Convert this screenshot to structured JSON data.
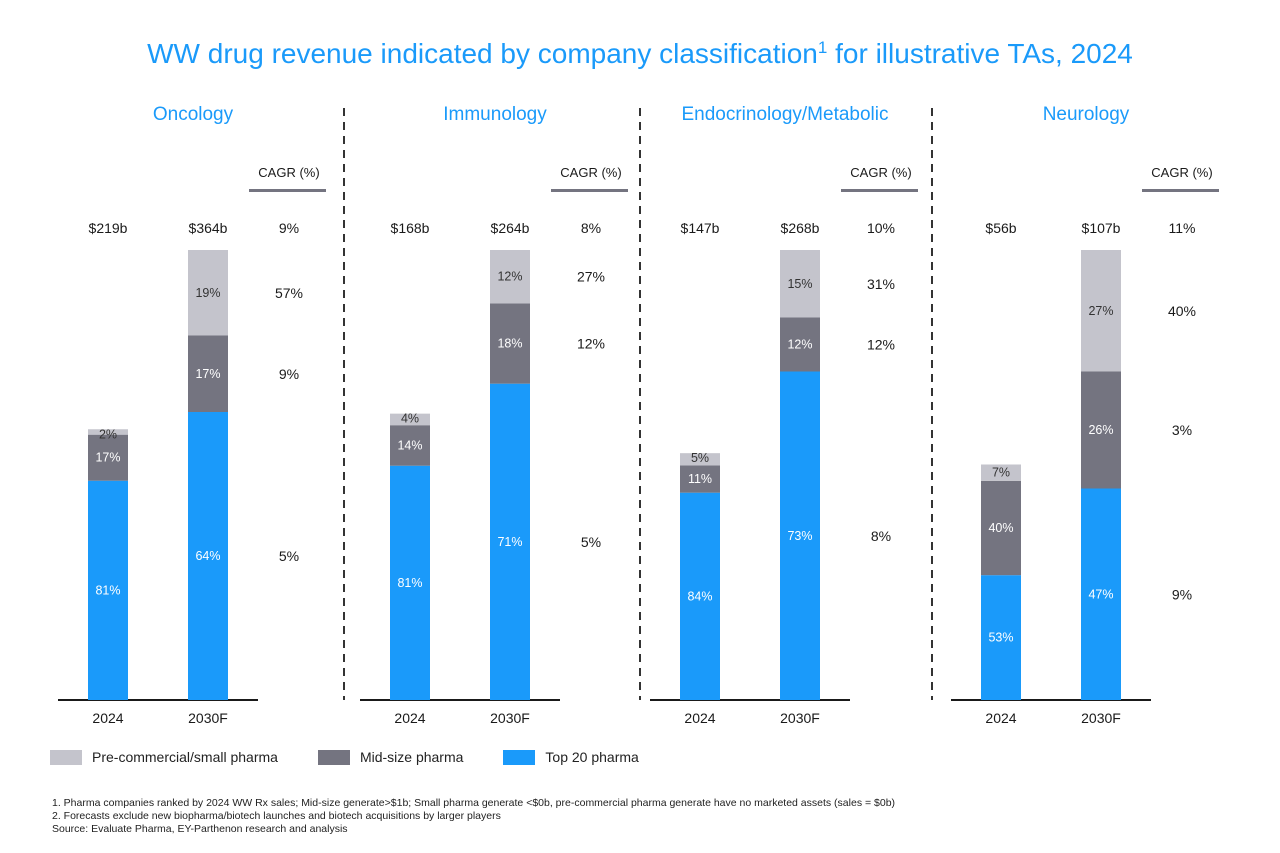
{
  "chart_data": {
    "type": "bar",
    "stacked": true,
    "title": "WW drug revenue indicated by company classification",
    "title_superscript": "1",
    "title_suffix": " for illustrative TAs, 2024",
    "cagr_header": "CAGR (%)",
    "categories": [
      "2024",
      "2030F"
    ],
    "series_names": [
      "Pre-commercial/small pharma",
      "Mid-size pharma",
      "Top 20 pharma"
    ],
    "colors": {
      "Pre-commercial/small pharma": "#c4c4cc",
      "Mid-size pharma": "#747480",
      "Top 20 pharma": "#1a9afa",
      "title": "#1a9afa",
      "axis": "#1a1a1a",
      "divider": "#333333",
      "cagr_rule": "#747480"
    },
    "panels": [
      {
        "name": "Oncology",
        "totals": [
          "$219b",
          "$364b"
        ],
        "total_values": [
          219,
          364
        ],
        "shares": {
          "Pre-commercial/small pharma": [
            2,
            19
          ],
          "Mid-size pharma": [
            17,
            17
          ],
          "Top 20 pharma": [
            81,
            64
          ]
        },
        "share_labels": {
          "Pre-commercial/small pharma": [
            "2%",
            "19%"
          ],
          "Mid-size pharma": [
            "17%",
            "17%"
          ],
          "Top 20 pharma": [
            "81%",
            "64%"
          ]
        },
        "cagr": {
          "total": "9%",
          "Pre-commercial/small pharma": "57%",
          "Mid-size pharma": "9%",
          "Top 20 pharma": "5%"
        }
      },
      {
        "name": "Immunology",
        "totals": [
          "$168b",
          "$264b"
        ],
        "total_values": [
          168,
          264
        ],
        "shares": {
          "Pre-commercial/small pharma": [
            4,
            12
          ],
          "Mid-size pharma": [
            14,
            18
          ],
          "Top 20 pharma": [
            81,
            71
          ]
        },
        "share_labels": {
          "Pre-commercial/small pharma": [
            "4%",
            "12%"
          ],
          "Mid-size pharma": [
            "14%",
            "18%"
          ],
          "Top 20 pharma": [
            "81%",
            "71%"
          ]
        },
        "cagr": {
          "total": "8%",
          "Pre-commercial/small pharma": "27%",
          "Mid-size pharma": "12%",
          "Top 20 pharma": "5%"
        }
      },
      {
        "name": "Endocrinology/Metabolic",
        "totals": [
          "$147b",
          "$268b"
        ],
        "total_values": [
          147,
          268
        ],
        "shares": {
          "Pre-commercial/small pharma": [
            5,
            15
          ],
          "Mid-size pharma": [
            11,
            12
          ],
          "Top 20 pharma": [
            84,
            73
          ]
        },
        "share_labels": {
          "Pre-commercial/small pharma": [
            "5%",
            "15%"
          ],
          "Mid-size pharma": [
            "11%",
            "12%"
          ],
          "Top 20 pharma": [
            "84%",
            "73%"
          ]
        },
        "cagr": {
          "total": "10%",
          "Pre-commercial/small pharma": "31%",
          "Mid-size pharma": "12%",
          "Top 20 pharma": "8%"
        }
      },
      {
        "name": "Neurology",
        "totals": [
          "$56b",
          "$107b"
        ],
        "total_values": [
          56,
          107
        ],
        "shares": {
          "Pre-commercial/small pharma": [
            7,
            27
          ],
          "Mid-size pharma": [
            40,
            26
          ],
          "Top 20 pharma": [
            53,
            47
          ]
        },
        "share_labels": {
          "Pre-commercial/small pharma": [
            "7%",
            "27%"
          ],
          "Mid-size pharma": [
            "40%",
            "26%"
          ],
          "Top 20 pharma": [
            "53%",
            "47%"
          ]
        },
        "cagr": {
          "total": "11%",
          "Pre-commercial/small pharma": "40%",
          "Mid-size pharma": "3%",
          "Top 20 pharma": "9%"
        }
      }
    ]
  },
  "legend": {
    "items": [
      {
        "label": "Pre-commercial/small pharma",
        "color": "#c4c4cc"
      },
      {
        "label": "Mid-size pharma",
        "color": "#747480"
      },
      {
        "label": "Top 20 pharma",
        "color": "#1a9afa"
      }
    ]
  },
  "footnotes": {
    "note1": "1.  Pharma companies ranked by 2024 WW Rx sales; Mid-size generate>$1b; Small pharma generate <$0b, pre-commercial pharma generate have no marketed assets (sales = $0b)",
    "note2": "2.  Forecasts exclude new biopharma/biotech launches and biotech acquisitions by larger players",
    "source": "Source: Evaluate Pharma, EY-Parthenon research and analysis"
  }
}
